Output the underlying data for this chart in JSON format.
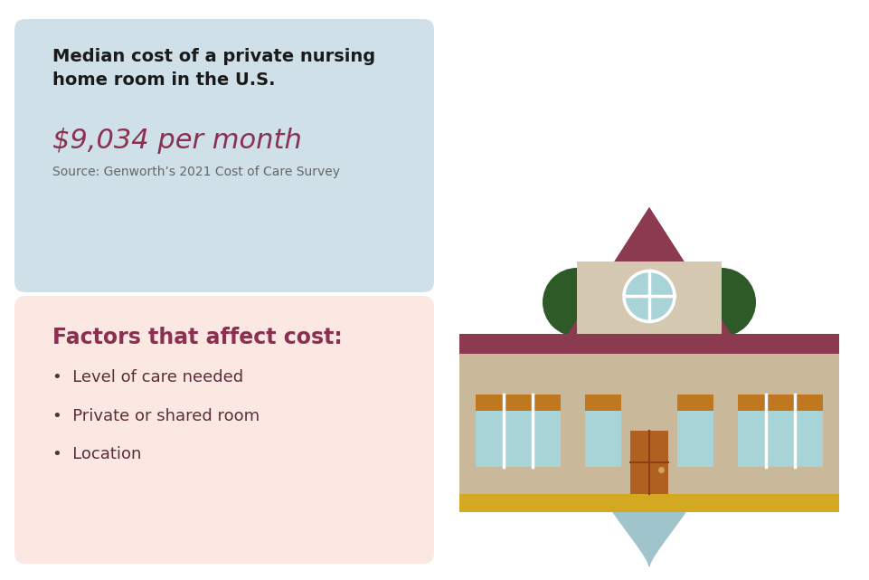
{
  "bg_color": "#ffffff",
  "top_box_color": "#cfe0e8",
  "bottom_box_color": "#fce8e2",
  "top_box_title": "Median cost of a private nursing\nhome room in the U.S.",
  "top_box_value": "$9,034 per month",
  "top_box_source": "Source: Genworth’s 2021 Cost of Care Survey",
  "bottom_box_title": "Factors that affect cost:",
  "bullet_items": [
    "Level of care needed",
    "Private or shared room",
    "Location"
  ],
  "title_color": "#1a1a1a",
  "value_color": "#8b3050",
  "source_color": "#666666",
  "factors_title_color": "#8b3050",
  "bullet_color": "#5c2d3a",
  "pin_color": "#9fc4cc",
  "pin_inner_color": "#ffffff",
  "dollar_color": "#7a2a3a",
  "building_wall_color": "#c9b89a",
  "building_center_color": "#d4c8b0",
  "building_roof_color": "#8b3a50",
  "building_window_color": "#a8d4d8",
  "building_window_frame": "#ffffff",
  "building_door_color": "#b06020",
  "building_base_color": "#d4a820",
  "building_orange_bar": "#c07820",
  "tree_color": "#2d5a27"
}
